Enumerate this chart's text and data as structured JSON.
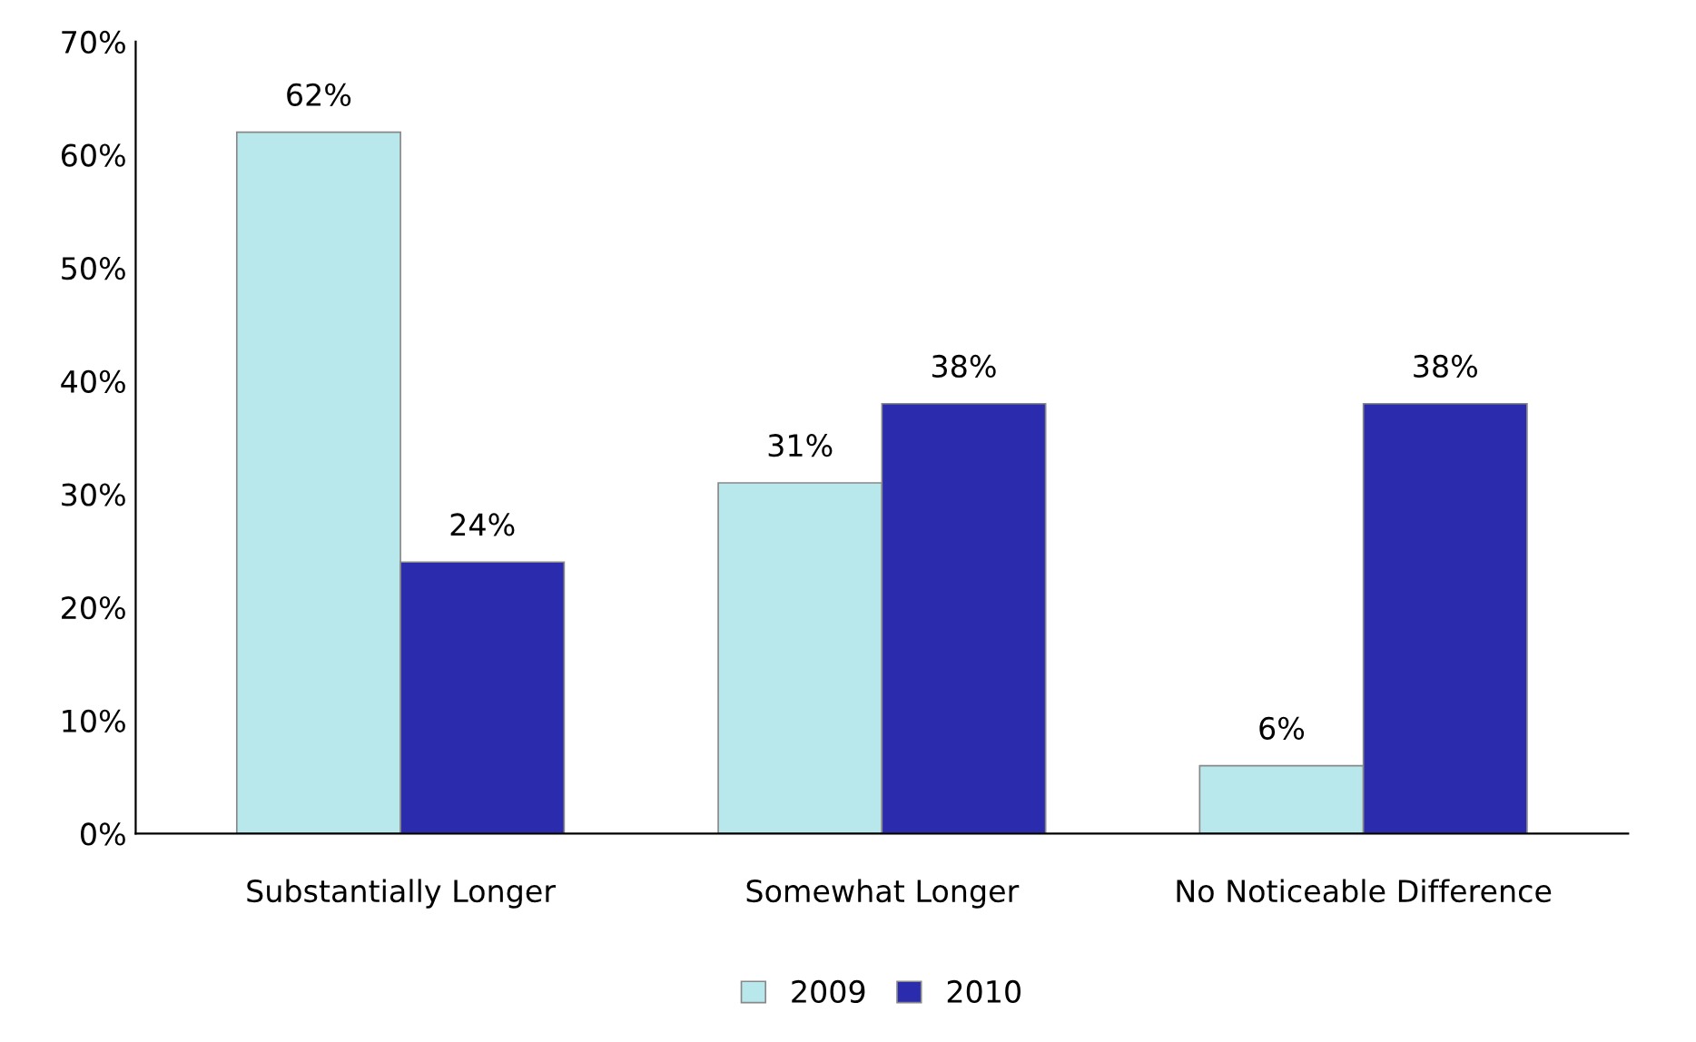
{
  "chart_data": {
    "type": "bar",
    "categories": [
      "Substantially Longer",
      "Somewhat Longer",
      "No Noticeable Difference"
    ],
    "series": [
      {
        "name": "2009",
        "color": "#b8e8ec",
        "values": [
          62,
          31,
          6
        ],
        "value_labels": [
          "62%",
          "31%",
          "6%"
        ]
      },
      {
        "name": "2010",
        "color": "#2b2bae",
        "values": [
          24,
          38,
          38
        ],
        "value_labels": [
          "24%",
          "38%",
          "38%"
        ]
      }
    ],
    "ylim": [
      0,
      70
    ],
    "yticks": [
      {
        "value": 0,
        "label": "0%"
      },
      {
        "value": 10,
        "label": "10%"
      },
      {
        "value": 20,
        "label": "20%"
      },
      {
        "value": 30,
        "label": "30%"
      },
      {
        "value": 40,
        "label": "40%"
      },
      {
        "value": 50,
        "label": "50%"
      },
      {
        "value": 60,
        "label": "60%"
      },
      {
        "value": 70,
        "label": "70%"
      }
    ],
    "grid": false,
    "legend": "bottom"
  }
}
